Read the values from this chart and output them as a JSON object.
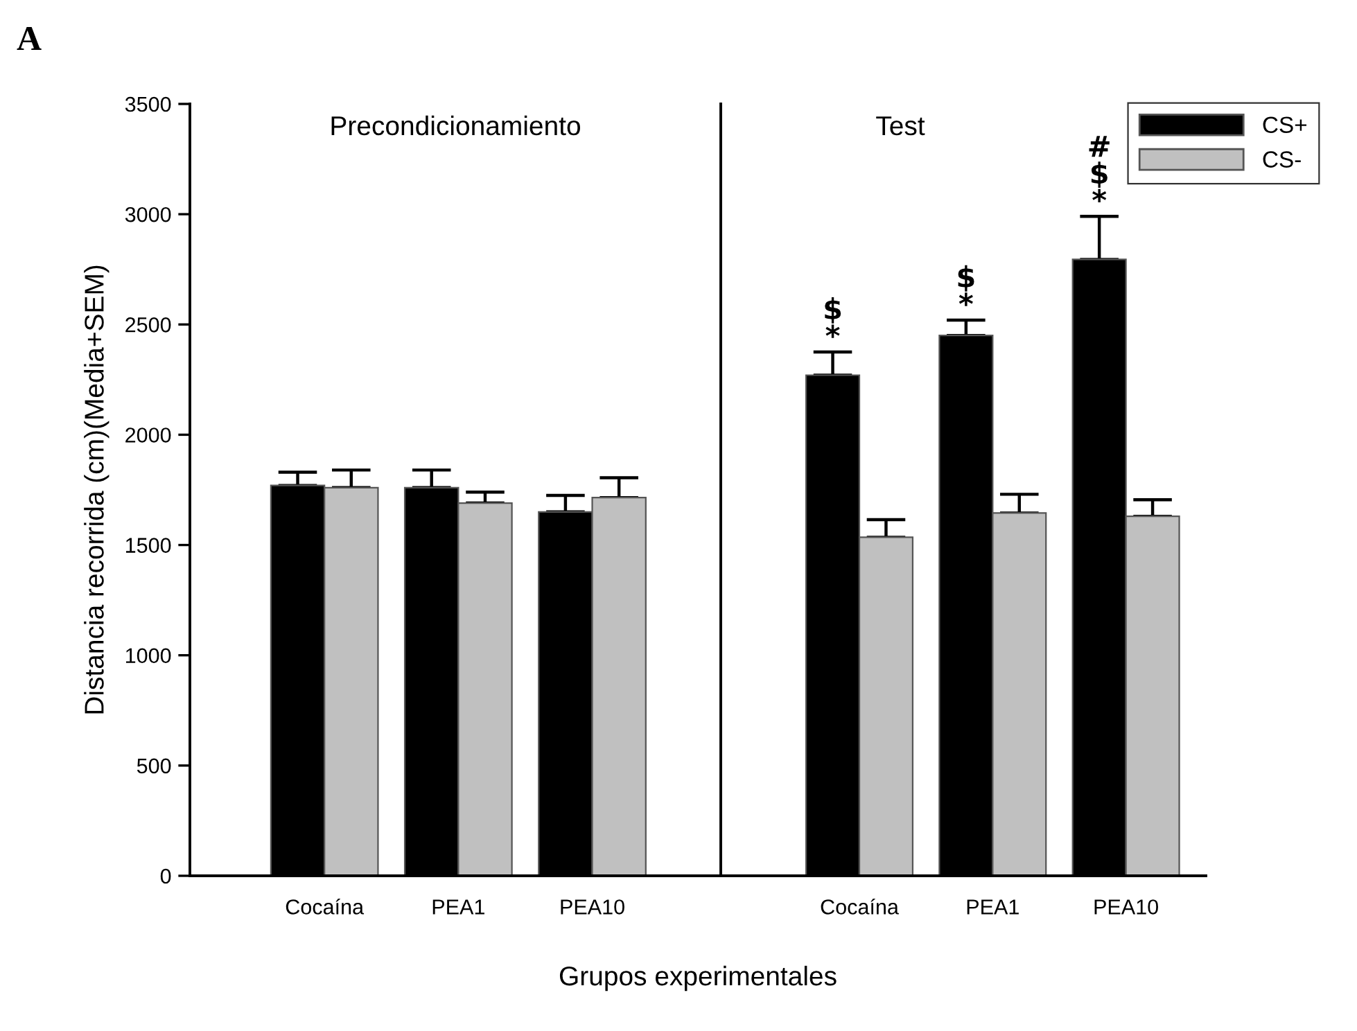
{
  "chart_data": [
    {
      "type": "bar",
      "title": "Precondicionamiento",
      "xlabel": "Grupos experimentales",
      "ylabel": "Distancia recorrida (cm)(Media+SEM)",
      "categories": [
        "Cocaína",
        "PEA1",
        "PEA10"
      ],
      "series": [
        {
          "color": "#000000",
          "values": [
            1770,
            1760,
            1650
          ],
          "errors": [
            [
              1770,
              1830
            ],
            [
              1760,
              1840
            ],
            [
              1650,
              1725
            ]
          ]
        },
        {
          "color": "#c0c0c0",
          "values": [
            1760,
            1690,
            1715
          ],
          "errors": [
            [
              1760,
              1840
            ],
            [
              1690,
              1740
            ],
            [
              1715,
              1805
            ]
          ]
        }
      ],
      "ylim": [
        0,
        3500
      ],
      "yticks": [
        0,
        500,
        1000,
        1500,
        2000,
        2500,
        3000,
        3500
      ],
      "grid": false,
      "legend": false,
      "annotations": [
        "A"
      ]
    },
    {
      "type": "bar",
      "title": "Test",
      "categories": [
        "Cocaína",
        "PEA1",
        "PEA10"
      ],
      "series": [
        {
          "name": "CS+",
          "color": "#000000",
          "values": [
            2270,
            2450,
            2795
          ],
          "errors": [
            [
              2270,
              2375
            ],
            [
              2450,
              2520
            ],
            [
              2795,
              2990
            ]
          ]
        },
        {
          "name": "CS-",
          "color": "#c0c0c0",
          "values": [
            1535,
            1645,
            1630
          ],
          "errors": [
            [
              1535,
              1615
            ],
            [
              1645,
              1730
            ],
            [
              1630,
              1705
            ]
          ]
        }
      ],
      "ylim": [
        0,
        3500
      ],
      "tick_labels": "x",
      "grid": false,
      "legend": "top right",
      "annotations": [
        "$\n*",
        "$\n*",
        "#\n$\n*"
      ]
    }
  ]
}
